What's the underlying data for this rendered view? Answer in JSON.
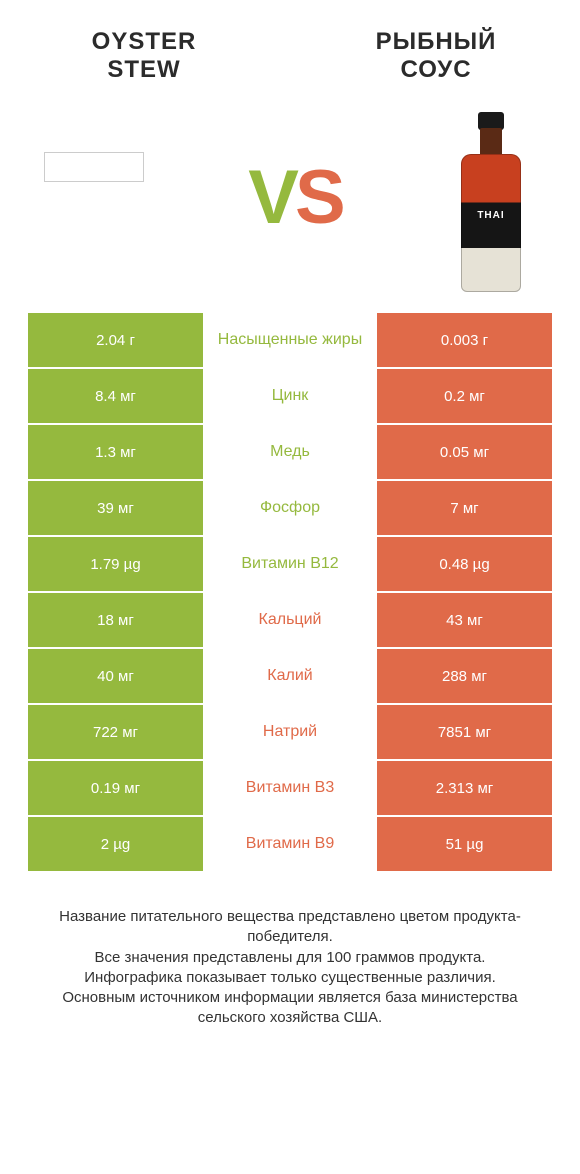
{
  "header": {
    "left_title_line1": "OYSTER",
    "left_title_line2": "STEW",
    "right_title_line1": "РЫБНЫЙ",
    "right_title_line2": "СОУС",
    "vs_v": "V",
    "vs_s": "S",
    "bottle_brand": "THAI"
  },
  "colors": {
    "green": "#95b93e",
    "orange": "#e06a49",
    "bg": "#ffffff"
  },
  "rows": [
    {
      "left": "2.04 г",
      "label": "Насыщенные жиры",
      "right": "0.003 г",
      "winner": "left"
    },
    {
      "left": "8.4 мг",
      "label": "Цинк",
      "right": "0.2 мг",
      "winner": "left"
    },
    {
      "left": "1.3 мг",
      "label": "Медь",
      "right": "0.05 мг",
      "winner": "left"
    },
    {
      "left": "39 мг",
      "label": "Фосфор",
      "right": "7 мг",
      "winner": "left"
    },
    {
      "left": "1.79 µg",
      "label": "Витамин B12",
      "right": "0.48 µg",
      "winner": "left"
    },
    {
      "left": "18 мг",
      "label": "Кальций",
      "right": "43 мг",
      "winner": "right"
    },
    {
      "left": "40 мг",
      "label": "Калий",
      "right": "288 мг",
      "winner": "right"
    },
    {
      "left": "722 мг",
      "label": "Натрий",
      "right": "7851 мг",
      "winner": "right"
    },
    {
      "left": "0.19 мг",
      "label": "Витамин B3",
      "right": "2.313 мг",
      "winner": "right"
    },
    {
      "left": "2 µg",
      "label": "Витамин B9",
      "right": "51 µg",
      "winner": "right"
    }
  ],
  "footer": {
    "l1": "Название питательного вещества представлено цветом продукта-победителя.",
    "l2": "Все значения представлены для 100 граммов продукта.",
    "l3": "Инфографика показывает только существенные различия.",
    "l4": "Основным источником информации является база министерства сельского хозяйства США."
  }
}
